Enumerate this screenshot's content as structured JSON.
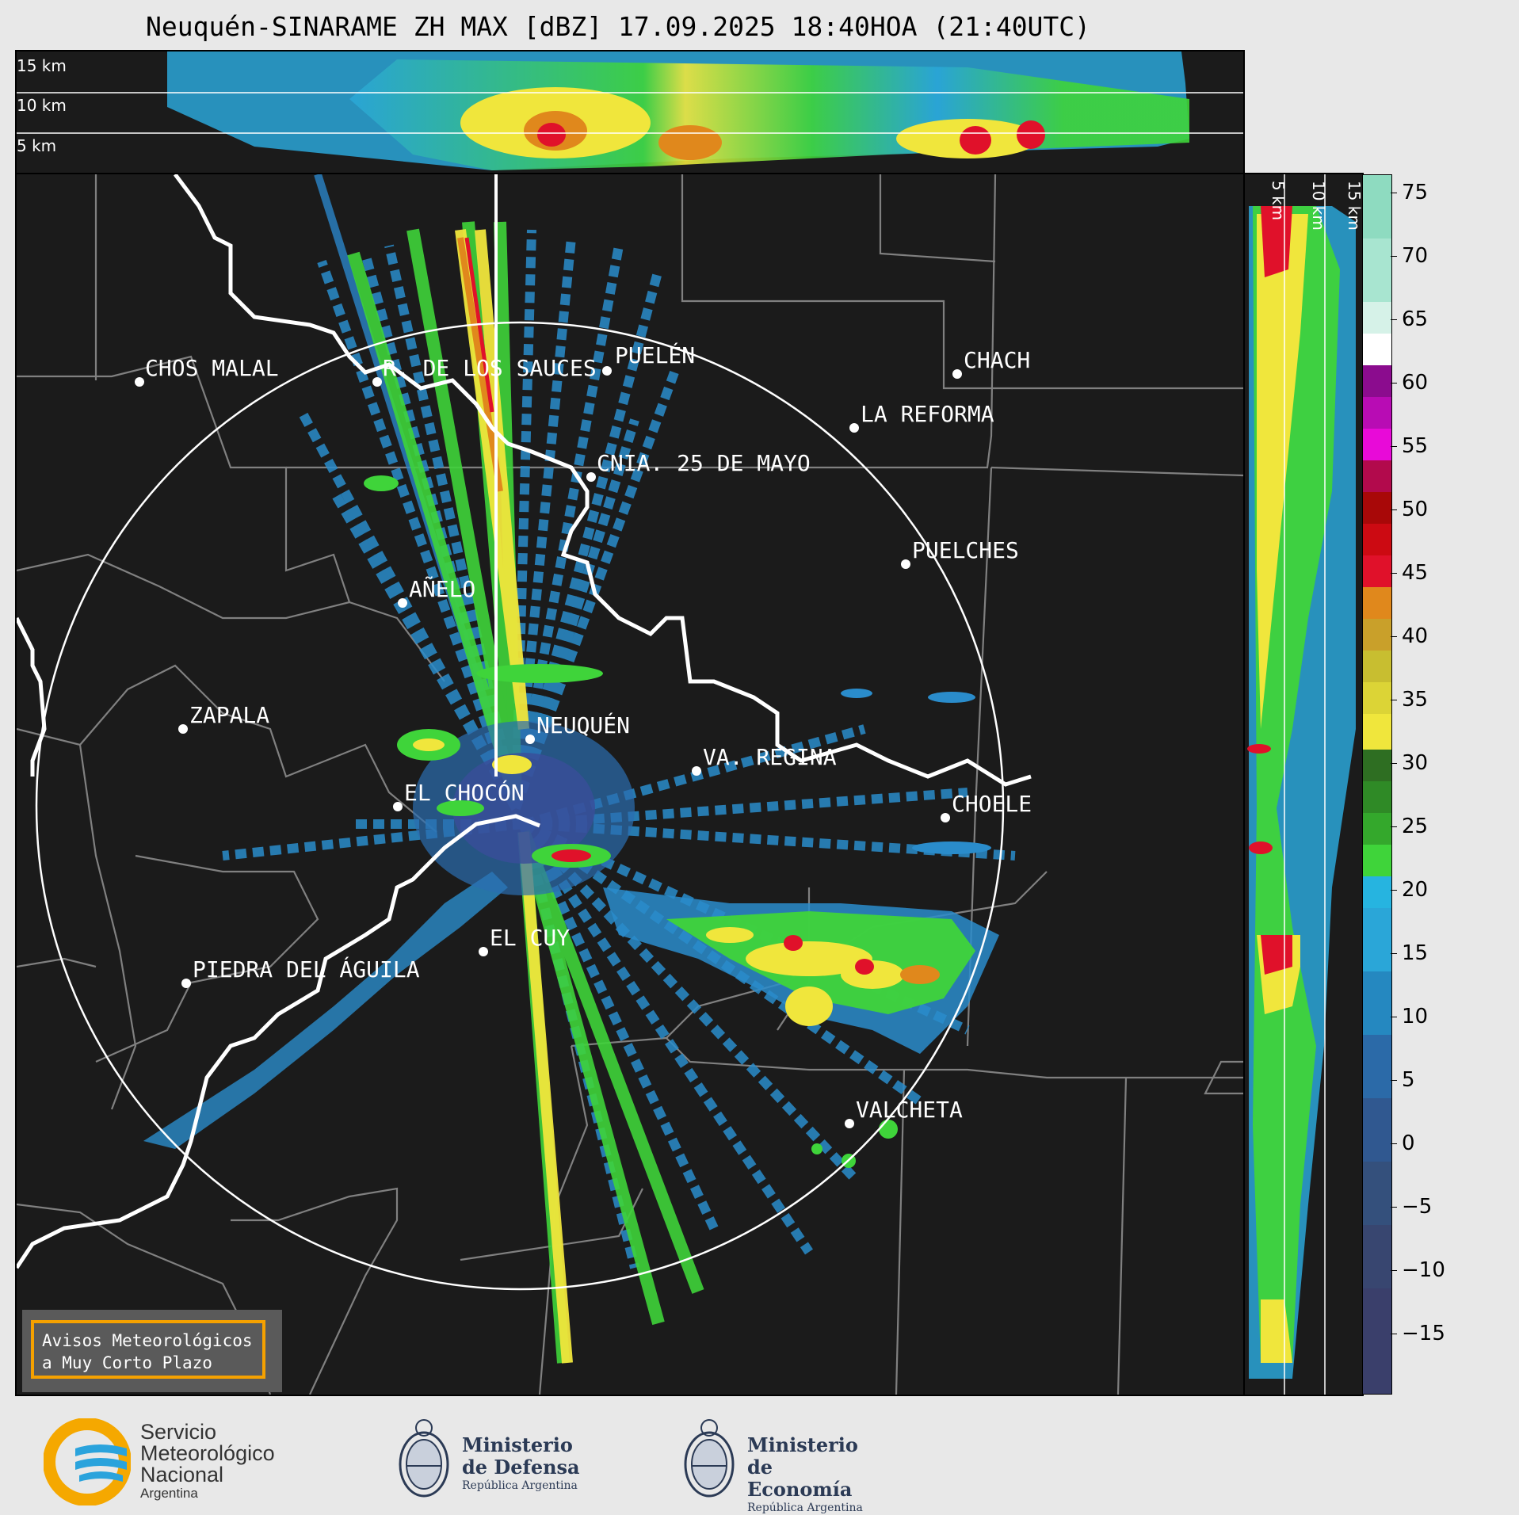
{
  "title": "Neuquén-SINARAME ZH MAX [dBZ] 17.09.2025 18:40HOA (21:40UTC)",
  "top_panel": {
    "height_labels": [
      "15 km",
      "10 km",
      "5 km"
    ]
  },
  "side_panel": {
    "height_labels": [
      "5 km",
      "10 km",
      "15 km"
    ]
  },
  "colorbar": {
    "unit": "dBZ",
    "ticks": [
      "75",
      "70",
      "65",
      "60",
      "55",
      "50",
      "45",
      "40",
      "35",
      "30",
      "25",
      "20",
      "15",
      "10",
      "5",
      "0",
      "−5",
      "−10",
      "−15"
    ],
    "colors": {
      "cyan_low": "#2aa6d8",
      "green": "#3fd43a",
      "yellow": "#f0e63c",
      "orange": "#e0881c",
      "red": "#e0112a",
      "magenta": "#e80ad8",
      "purple": "#8b0c8e",
      "white": "#ffffff",
      "teal": "#8edbc0",
      "navy": "#3a3f6b"
    }
  },
  "cities": [
    {
      "name": "CHOS MALAL"
    },
    {
      "name": "R. DE LOS SAUCES"
    },
    {
      "name": "PUELÉN"
    },
    {
      "name": "CHACH"
    },
    {
      "name": "LA REFORMA"
    },
    {
      "name": "CNIA. 25 DE MAYO"
    },
    {
      "name": "PUELCHES"
    },
    {
      "name": "AÑELO"
    },
    {
      "name": "ZAPALA"
    },
    {
      "name": "NEUQUÉN"
    },
    {
      "name": "VA. REGINA"
    },
    {
      "name": "EL CHOCÓN"
    },
    {
      "name": "CHOELE"
    },
    {
      "name": "EL CUY"
    },
    {
      "name": "PIEDRA DEL ÁGUILA"
    },
    {
      "name": "VALCHETA"
    }
  ],
  "warning": {
    "line1": "Avisos Meteorológicos",
    "line2": "a Muy Corto Plazo"
  },
  "footer": {
    "smn": {
      "line1": "Servicio",
      "line2": "Meteorológico",
      "line3": "Nacional",
      "line4": "Argentina"
    },
    "defensa": {
      "line1": "Ministerio",
      "line2": "de Defensa",
      "line3": "República Argentina"
    },
    "economia": {
      "line1": "Ministerio",
      "line2": "de Economía",
      "line3": "República Argentina"
    }
  }
}
